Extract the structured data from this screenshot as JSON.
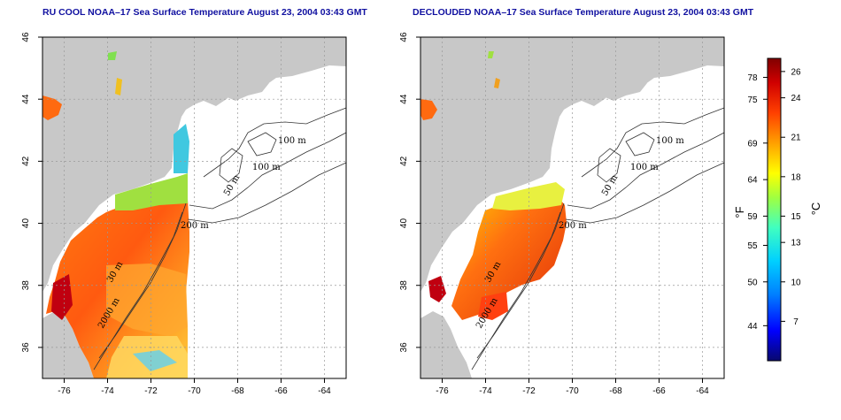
{
  "titles": {
    "left": "RU COOL NOAA–17 Sea Surface Temperature August 23, 2004 03:43 GMT",
    "right": "DECLOUDED NOAA–17 Sea Surface Temperature August 23, 2004 03:43 GMT"
  },
  "map": {
    "lon_range": [
      -77,
      -63
    ],
    "lat_range": [
      35,
      46
    ],
    "lon_ticks": [
      -76,
      -74,
      -72,
      -70,
      -68,
      -66,
      -64
    ],
    "lat_ticks": [
      36,
      38,
      40,
      42,
      44,
      46
    ],
    "lon_tick_labels": [
      "-76",
      "-74",
      "-72",
      "-70",
      "-68",
      "-66",
      "-64"
    ],
    "lat_tick_labels": [
      "36",
      "38",
      "40",
      "42",
      "44",
      "46"
    ],
    "land_color": "#c8c8c8",
    "contour_labels": [
      "100 m",
      "100 m",
      "50 m",
      "200 m",
      "30 m",
      "2000 m"
    ]
  },
  "colorbar": {
    "f_ticks": [
      44,
      50,
      55,
      59,
      64,
      69,
      75,
      78
    ],
    "f_tick_labels": [
      "44",
      "50",
      "55",
      "59",
      "64",
      "69",
      "75",
      "78"
    ],
    "c_ticks": [
      7,
      10,
      13,
      15,
      18,
      21,
      24,
      26
    ],
    "c_tick_labels": [
      "7",
      "10",
      "13",
      "15",
      "18",
      "21",
      "24",
      "26"
    ],
    "range_c": [
      4,
      27
    ],
    "unit_f": "°F",
    "unit_c": "°C",
    "colors": [
      "#08086e",
      "#0000ff",
      "#0080ff",
      "#00d0ff",
      "#40ffc0",
      "#a0ff40",
      "#ffff00",
      "#ffa000",
      "#ff4000",
      "#d00000",
      "#800000"
    ]
  }
}
